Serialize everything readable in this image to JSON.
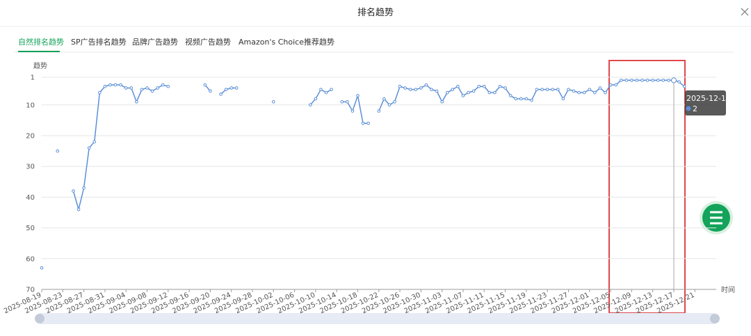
{
  "dialog": {
    "title": "排名趋势"
  },
  "tabs": [
    "自然排名趋势",
    "SP广告排名趋势",
    "品牌广告趋势",
    "视频广告趋势",
    "Amazon's Choice推荐趋势"
  ],
  "chart_data": {
    "type": "line",
    "y_axis_title": "趋势",
    "x_axis_title": "时间",
    "color": "#5b8fd6",
    "grid": true,
    "ylim": [
      70,
      1
    ],
    "yticks": [
      1,
      10,
      20,
      30,
      40,
      50,
      60,
      70
    ],
    "categories": [
      "2025-08-19",
      null,
      null,
      null,
      "2025-08-23",
      null,
      null,
      null,
      "2025-08-27",
      null,
      null,
      null,
      "2025-08-31",
      null,
      null,
      null,
      "2025-09-04",
      null,
      null,
      null,
      "2025-09-08",
      null,
      null,
      null,
      "2025-09-12",
      null,
      null,
      null,
      "2025-09-16",
      null,
      null,
      null,
      "2025-09-20",
      null,
      null,
      null,
      "2025-09-24",
      null,
      null,
      null,
      "2025-09-28",
      null,
      null,
      null,
      "2025-10-02",
      null,
      null,
      null,
      "2025-10-06",
      null,
      null,
      null,
      "2025-10-10",
      null,
      null,
      null,
      "2025-10-14",
      null,
      null,
      null,
      "2025-10-18",
      null,
      null,
      null,
      "2025-10-22",
      null,
      null,
      null,
      "2025-10-26",
      null,
      null,
      null,
      "2025-10-30",
      null,
      null,
      null,
      "2025-11-03",
      null,
      null,
      null,
      "2025-11-07",
      null,
      null,
      null,
      "2025-11-11",
      null,
      null,
      null,
      "2025-11-15",
      null,
      null,
      null,
      "2025-11-19",
      null,
      null,
      null,
      "2025-11-23",
      null,
      null,
      null,
      "2025-11-27",
      null,
      null,
      null,
      "2025-12-01",
      null,
      null,
      null,
      "2025-12-05",
      null,
      null,
      null,
      "2025-12-09",
      null,
      null,
      null,
      "2025-12-13",
      null,
      null,
      null,
      "2025-12-17",
      null,
      null,
      null,
      "2025-12-21"
    ],
    "values": [
      63,
      null,
      null,
      25,
      null,
      null,
      38,
      44,
      37,
      24,
      22,
      6,
      4,
      3.5,
      3.5,
      3.5,
      4.5,
      4.5,
      9,
      5,
      4.5,
      5.5,
      4.5,
      3.5,
      4,
      null,
      null,
      null,
      null,
      null,
      null,
      3.5,
      5.5,
      null,
      6.5,
      5,
      4.5,
      4.5,
      null,
      null,
      null,
      null,
      null,
      null,
      9,
      null,
      null,
      null,
      null,
      null,
      null,
      10,
      8,
      5,
      6,
      5,
      null,
      9,
      9,
      12,
      7,
      16,
      16,
      null,
      12,
      8,
      10,
      9,
      4,
      4.5,
      5,
      5,
      4.5,
      3.5,
      5,
      5.5,
      9,
      6,
      5,
      4,
      7,
      6,
      5.5,
      4,
      4,
      6,
      6,
      4,
      4.5,
      7,
      8,
      8,
      8,
      8.5,
      5,
      5,
      5,
      5,
      5,
      8,
      5,
      5.5,
      6,
      6,
      5,
      6,
      4.5,
      6,
      3.5,
      3.5,
      2,
      2,
      2,
      2,
      2,
      2,
      2,
      2,
      2,
      2,
      2,
      2.5,
      4,
      null,
      null
    ]
  }
}
